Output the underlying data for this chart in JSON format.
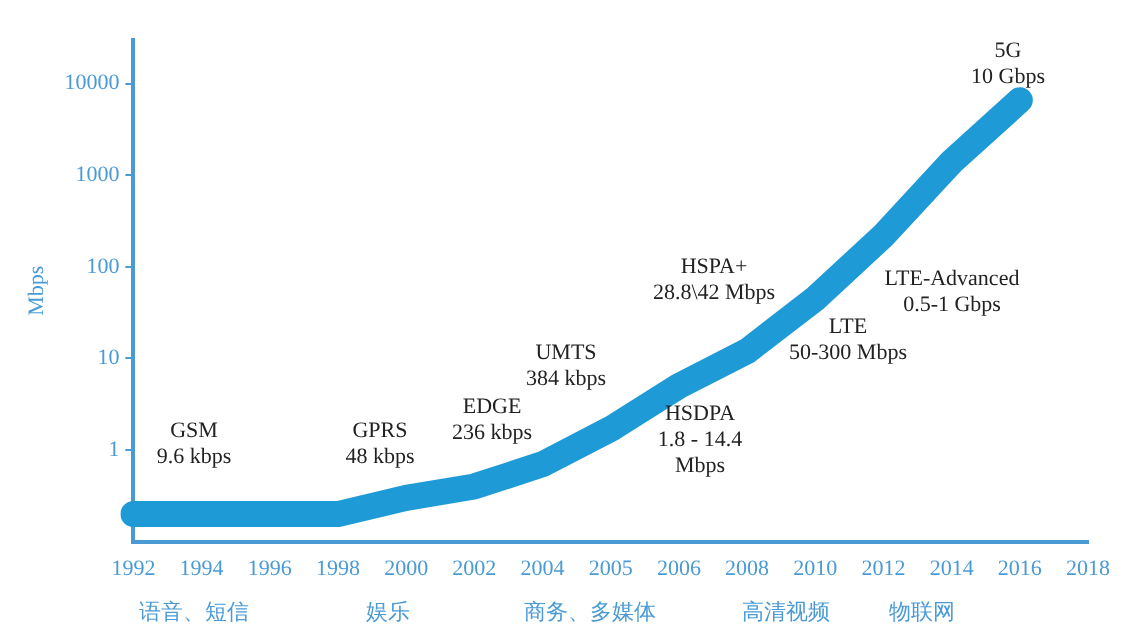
{
  "chart_data": {
    "type": "line",
    "ylabel": "Mbps",
    "categories": [
      "1992",
      "1994",
      "1996",
      "1998",
      "2000",
      "2002",
      "2004",
      "2005",
      "2006",
      "2008",
      "2010",
      "2012",
      "2014",
      "2016",
      "2018"
    ],
    "series": [
      {
        "color": "#1e9ad6",
        "values": [
          0.2,
          0.2,
          0.2,
          0.2,
          0.3,
          0.4,
          0.7,
          1.7,
          5,
          12,
          45,
          220,
          1400,
          6600,
          null
        ]
      }
    ],
    "log": "y",
    "ylim": [
      0.1,
      30000
    ],
    "yticks": [
      1,
      10,
      100,
      1000,
      10000
    ],
    "grid": false,
    "legend": false,
    "marker": "none",
    "line_style": "solid",
    "annotations": [
      "GSM\n9.6 kbps",
      "GPRS\n48 kbps",
      "EDGE\n236 kbps",
      "UMTS\n384 kbps",
      "HSDPA\n1.8 - 14.4\nMbps",
      "HSPA+\n28.8\\42 Mbps",
      "LTE\n50-300 Mbps",
      "LTE-Advanced\n0.5-1 Gbps",
      "5G\n10 Gbps",
      "语音、短信",
      "娱乐",
      "商务、多媒体",
      "高清视频",
      "物联网"
    ]
  }
}
